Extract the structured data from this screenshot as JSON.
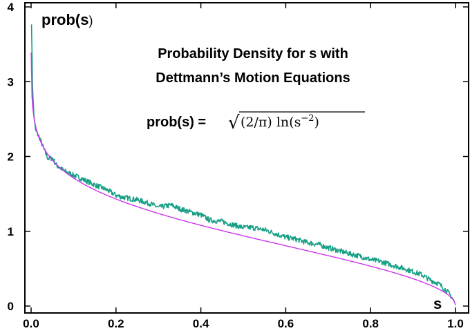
{
  "chart_data": {
    "type": "line",
    "title_lines": [
      "Probability Density for s with",
      "Dettmann’s Motion Equations"
    ],
    "formula": {
      "lhs": "prob(s) = ",
      "radical": "√",
      "radicand_a": "(2/π) ln(s",
      "exponent": "−2",
      "radicand_b": ")"
    },
    "ylabel": "prob(s",
    "ylabel_close": ")",
    "xlabel": "s",
    "xlim": [
      0.0,
      1.0
    ],
    "ylim": [
      0,
      4
    ],
    "xticks": [
      0.0,
      0.2,
      0.4,
      0.6,
      0.8,
      1.0
    ],
    "xtick_labels": [
      "0.0",
      "0.2",
      "0.4",
      "0.6",
      "0.8",
      "1.0"
    ],
    "yticks": [
      0,
      1,
      2,
      3,
      4
    ],
    "ytick_labels": [
      "0",
      "1",
      "2",
      "3",
      "4"
    ],
    "grid": false,
    "legend": "none",
    "series": [
      {
        "color": "#16a085",
        "style": "noisy-histogram",
        "x": [
          0.001,
          0.003,
          0.006,
          0.01,
          0.015,
          0.02,
          0.03,
          0.04,
          0.05,
          0.06,
          0.08,
          0.1,
          0.12,
          0.15,
          0.18,
          0.2,
          0.22,
          0.25,
          0.28,
          0.3,
          0.33,
          0.35,
          0.38,
          0.4,
          0.42,
          0.45,
          0.48,
          0.5,
          0.52,
          0.55,
          0.58,
          0.6,
          0.62,
          0.65,
          0.68,
          0.7,
          0.72,
          0.75,
          0.78,
          0.8,
          0.82,
          0.85,
          0.88,
          0.9,
          0.92,
          0.94,
          0.96,
          0.98,
          0.99,
          0.998
        ],
        "y": [
          3.8,
          3.0,
          2.6,
          2.35,
          2.3,
          2.25,
          2.1,
          1.97,
          1.98,
          1.88,
          1.8,
          1.75,
          1.7,
          1.62,
          1.55,
          1.48,
          1.45,
          1.42,
          1.37,
          1.32,
          1.35,
          1.3,
          1.25,
          1.22,
          1.15,
          1.13,
          1.08,
          1.05,
          1.05,
          1.02,
          0.96,
          0.92,
          0.9,
          0.85,
          0.82,
          0.78,
          0.75,
          0.7,
          0.66,
          0.62,
          0.6,
          0.55,
          0.5,
          0.46,
          0.42,
          0.35,
          0.3,
          0.2,
          0.13,
          0.05
        ]
      },
      {
        "color": "#cc33ee",
        "style": "smooth",
        "formula_id": "sqrt((2/pi)*ln(s^-2))"
      }
    ]
  }
}
